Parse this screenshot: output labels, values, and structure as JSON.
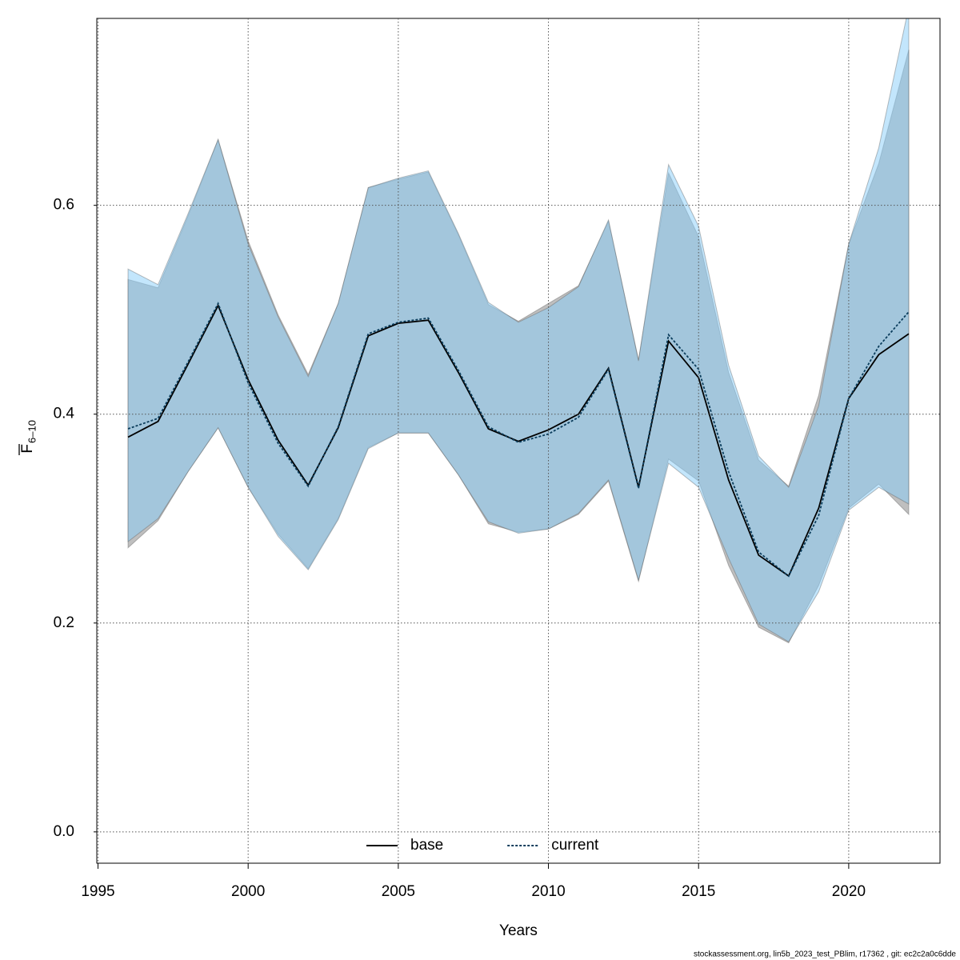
{
  "chart_data": {
    "type": "line-band",
    "xlabel": "Years",
    "ylabel": "F",
    "ylabel_subscript": "6–10",
    "footer": "stockassessment.org, lin5b_2023_test_PBlim, r17362 , git: ec2c2a0c6dde",
    "x": [
      1996,
      1997,
      1998,
      1999,
      2000,
      2001,
      2002,
      2003,
      2004,
      2005,
      2006,
      2007,
      2008,
      2009,
      2010,
      2011,
      2012,
      2013,
      2014,
      2015,
      2016,
      2017,
      2018,
      2019,
      2020,
      2021,
      2022
    ],
    "series": [
      {
        "name": "base",
        "color": "#000000",
        "band_color": "rgba(128,128,128,0.5)",
        "dash": "none",
        "values": [
          0.378,
          0.393,
          0.448,
          0.504,
          0.433,
          0.375,
          0.332,
          0.387,
          0.475,
          0.487,
          0.49,
          0.44,
          0.386,
          0.374,
          0.385,
          0.4,
          0.444,
          0.33,
          0.47,
          0.435,
          0.337,
          0.265,
          0.245,
          0.31,
          0.415,
          0.457,
          0.477
        ],
        "upper": [
          0.529,
          0.521,
          0.59,
          0.663,
          0.566,
          0.495,
          0.438,
          0.506,
          0.617,
          0.625,
          0.632,
          0.572,
          0.505,
          0.489,
          0.506,
          0.523,
          0.585,
          0.452,
          0.631,
          0.57,
          0.44,
          0.356,
          0.331,
          0.418,
          0.563,
          0.64,
          0.749
        ],
        "lower": [
          0.272,
          0.298,
          0.345,
          0.387,
          0.33,
          0.285,
          0.252,
          0.3,
          0.368,
          0.382,
          0.382,
          0.342,
          0.295,
          0.287,
          0.29,
          0.304,
          0.336,
          0.24,
          0.357,
          0.336,
          0.255,
          0.196,
          0.181,
          0.236,
          0.31,
          0.333,
          0.304
        ]
      },
      {
        "name": "current",
        "color": "#0b3d5c",
        "band_color": "rgba(135,206,250,0.5)",
        "dash": "3,2",
        "values": [
          0.386,
          0.396,
          0.45,
          0.506,
          0.43,
          0.372,
          0.331,
          0.388,
          0.477,
          0.488,
          0.492,
          0.442,
          0.388,
          0.373,
          0.381,
          0.397,
          0.443,
          0.329,
          0.476,
          0.443,
          0.345,
          0.268,
          0.245,
          0.303,
          0.415,
          0.465,
          0.498
        ],
        "upper": [
          0.539,
          0.524,
          0.592,
          0.663,
          0.563,
          0.493,
          0.436,
          0.506,
          0.617,
          0.626,
          0.633,
          0.573,
          0.507,
          0.488,
          0.502,
          0.522,
          0.586,
          0.451,
          0.639,
          0.58,
          0.447,
          0.36,
          0.33,
          0.408,
          0.563,
          0.655,
          0.79
        ],
        "lower": [
          0.278,
          0.3,
          0.345,
          0.387,
          0.33,
          0.283,
          0.251,
          0.299,
          0.367,
          0.382,
          0.382,
          0.342,
          0.297,
          0.286,
          0.29,
          0.305,
          0.337,
          0.241,
          0.353,
          0.33,
          0.262,
          0.199,
          0.182,
          0.23,
          0.308,
          0.33,
          0.314
        ]
      }
    ],
    "xlim": [
      1994.96,
      2023.04
    ],
    "ylim": [
      -0.03,
      0.779
    ],
    "xticks": [
      1995,
      2000,
      2005,
      2010,
      2015,
      2020
    ],
    "yticks": [
      {
        "value": 0,
        "label": "0.0"
      },
      0.2,
      0.4,
      0.6
    ],
    "grid": true,
    "legend": "bottom"
  }
}
